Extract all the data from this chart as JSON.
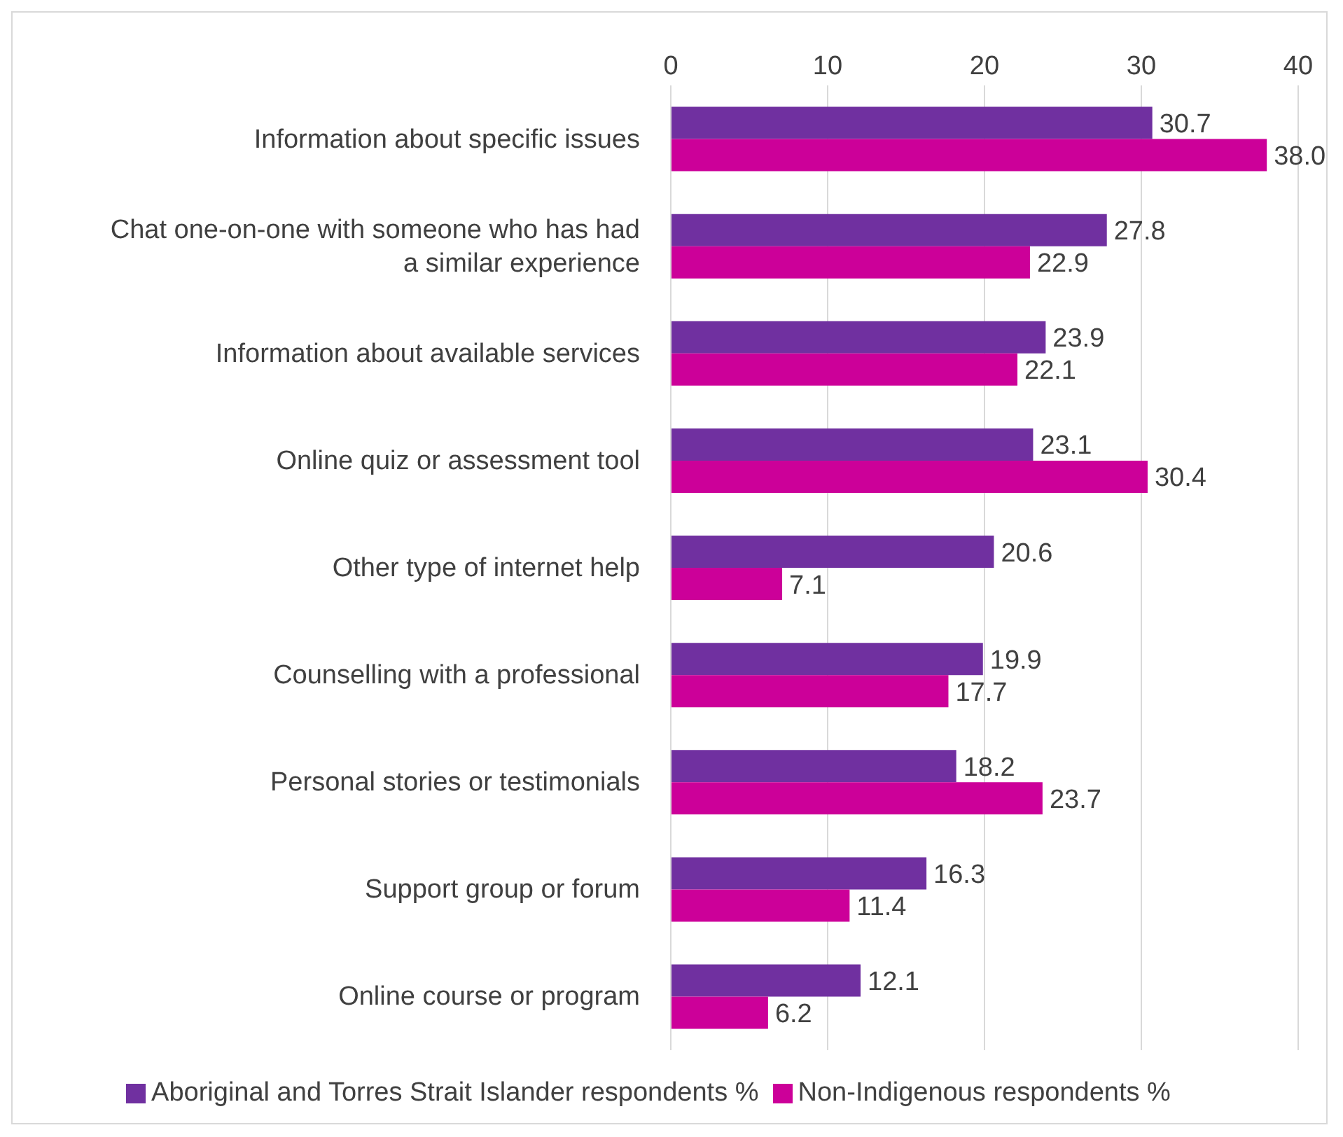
{
  "chart_data": {
    "type": "bar",
    "orientation": "horizontal",
    "categories": [
      "Information about specific issues",
      "Chat one-on-one with someone who has had a similar experience",
      "Information about available services",
      "Online quiz or assessment tool",
      "Other type of internet help",
      "Counselling with a professional",
      "Personal stories or testimonials",
      "Support group or forum",
      "Online course or program"
    ],
    "series": [
      {
        "name": "Aboriginal and Torres Strait Islander respondents %",
        "color": "#7030a0",
        "values": [
          30.7,
          27.8,
          23.9,
          23.1,
          20.6,
          19.9,
          18.2,
          16.3,
          12.1
        ],
        "value_labels": [
          "30.7",
          "27.8",
          "23.9",
          "23.1",
          "20.6",
          "19.9",
          "18.2",
          "16.3",
          "12.1"
        ]
      },
      {
        "name": "Non-Indigenous respondents %",
        "color": "#cc0099",
        "values": [
          38.0,
          22.9,
          22.1,
          30.4,
          7.1,
          17.7,
          23.7,
          11.4,
          6.2
        ],
        "value_labels": [
          "38.0",
          "22.9",
          "22.1",
          "30.4",
          "7.1",
          "17.7",
          "23.7",
          "11.4",
          "6.2"
        ]
      }
    ],
    "xlim": [
      0,
      40
    ],
    "xticks": [
      0,
      10,
      20,
      30,
      40
    ],
    "grid": "x",
    "legend": "bottom"
  }
}
